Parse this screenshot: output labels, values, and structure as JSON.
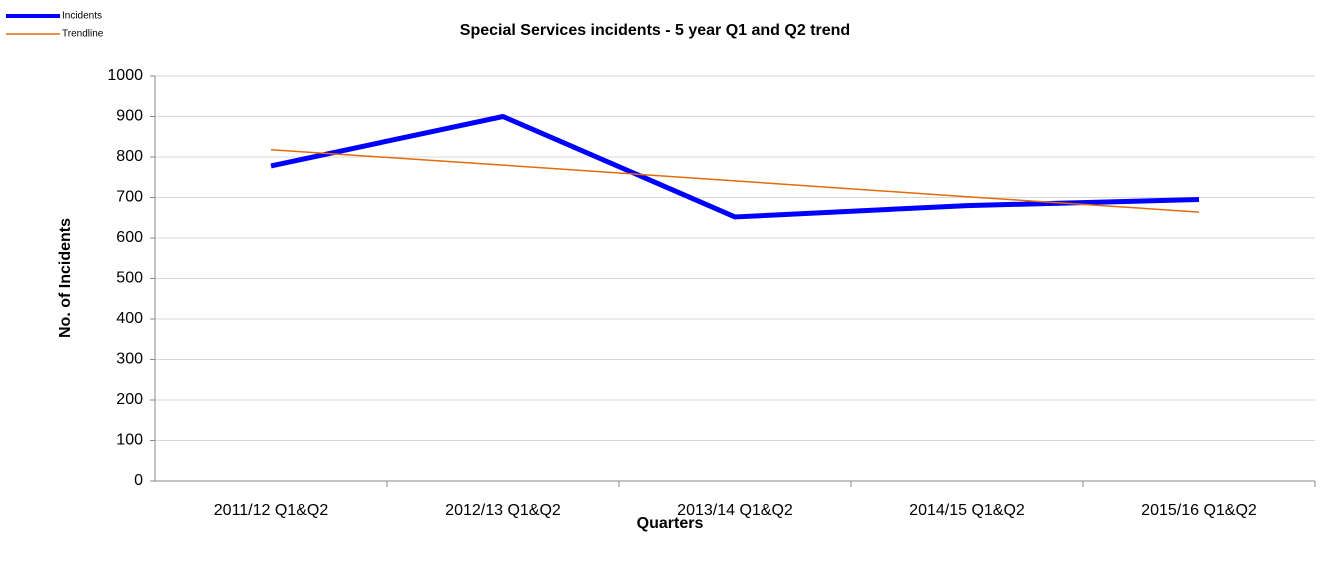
{
  "chart_data": {
    "type": "line",
    "title": "Special Services incidents - 5 year Q1 and Q2 trend",
    "x_label": "Quarters",
    "y_label": "No. of Incidents",
    "categories": [
      "2011/12 Q1&Q2",
      "2012/13 Q1&Q2",
      "2013/14 Q1&Q2",
      "2014/15 Q1&Q2",
      "2015/16 Q1&Q2"
    ],
    "series": [
      {
        "name": "Incidents",
        "color": "#0000ff",
        "values": [
          778,
          900,
          652,
          680,
          695
        ]
      },
      {
        "name": "Trendline",
        "color": "#e36c09",
        "values": [
          818,
          780,
          741,
          702,
          664
        ]
      }
    ],
    "ylim": [
      0,
      1000
    ],
    "yticks": [
      0,
      100,
      200,
      300,
      400,
      500,
      600,
      700,
      800,
      900,
      1000
    ],
    "grid": true,
    "legend": "top-left"
  }
}
